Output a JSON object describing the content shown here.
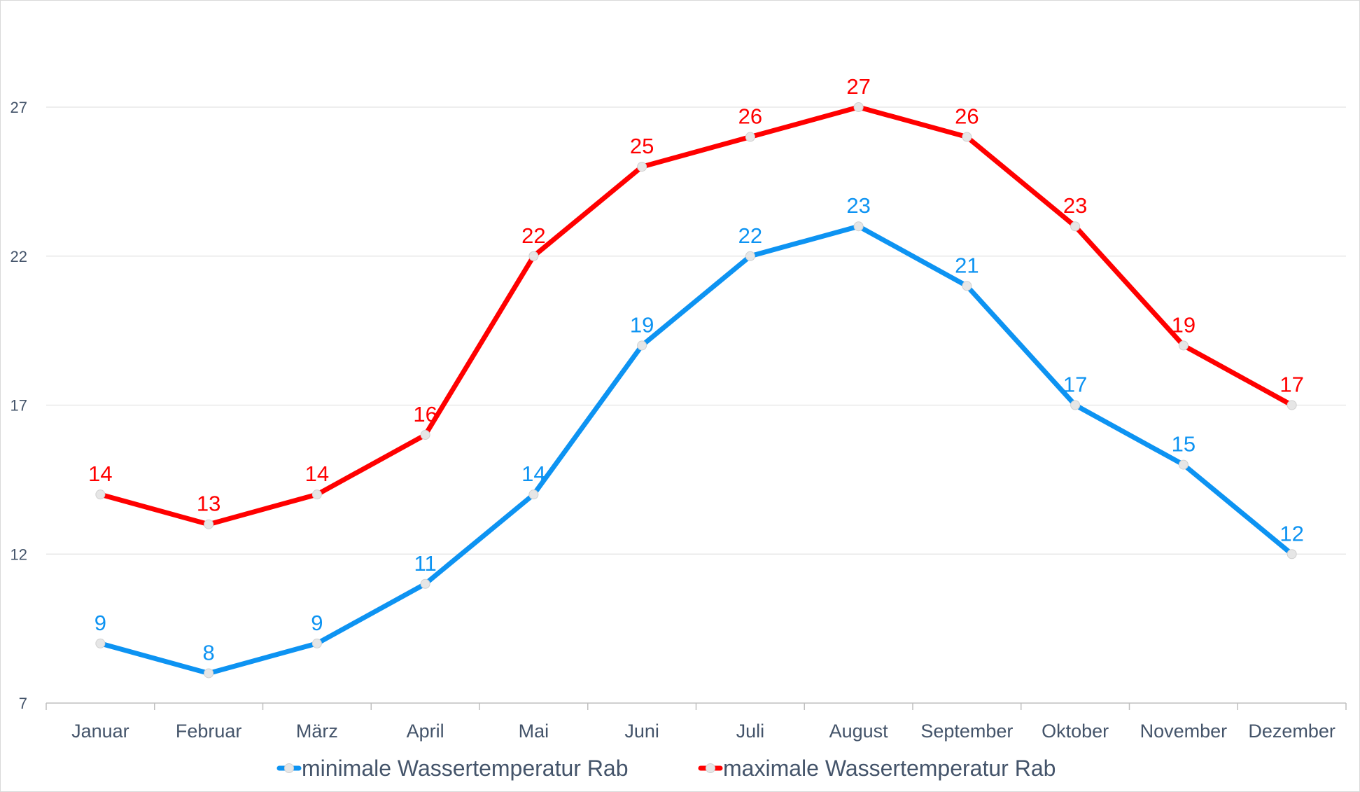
{
  "chart_data": {
    "type": "line",
    "title": "",
    "xlabel": "",
    "ylabel": "",
    "categories": [
      "Januar",
      "Februar",
      "März",
      "April",
      "Mai",
      "Juni",
      "Juli",
      "August",
      "September",
      "Oktober",
      "November",
      "Dezember"
    ],
    "series": [
      {
        "name": "minimale Wassertemperatur Rab",
        "color": "#0d93f2",
        "values": [
          9,
          8,
          9,
          11,
          14,
          19,
          22,
          23,
          21,
          17,
          15,
          12
        ]
      },
      {
        "name": "maximale Wassertemperatur Rab",
        "color": "#ff0000",
        "values": [
          14,
          13,
          14,
          16,
          22,
          25,
          26,
          27,
          26,
          23,
          19,
          17
        ]
      }
    ],
    "y_ticks": [
      7,
      12,
      17,
      22,
      27
    ],
    "ylim": [
      7,
      27
    ],
    "grid": true,
    "data_labels": true,
    "legend_position": "bottom",
    "marker_color": "#e6e6e6"
  }
}
